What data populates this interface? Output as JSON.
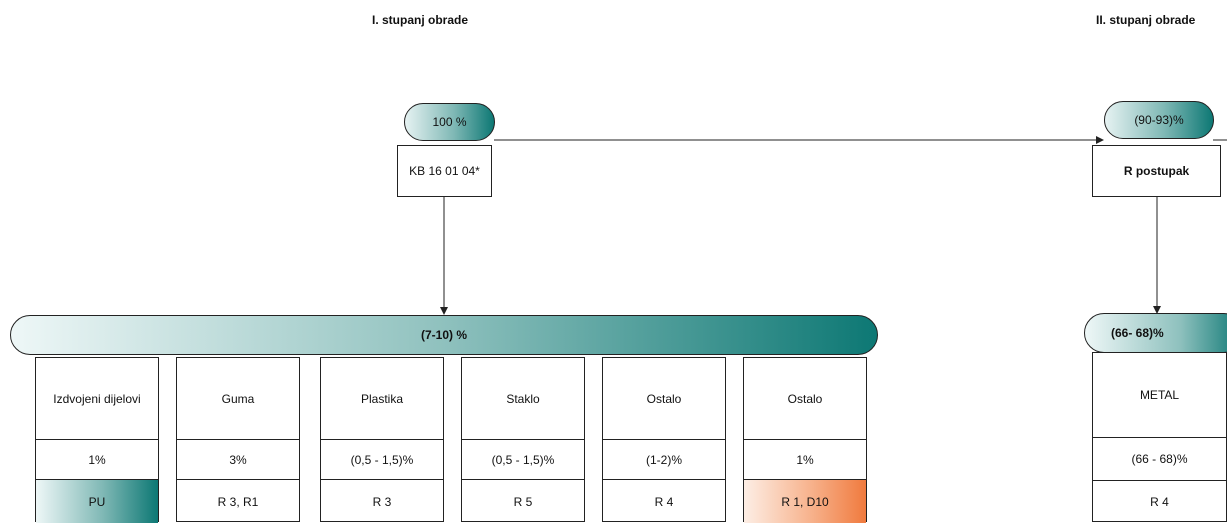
{
  "stage1": {
    "title": "I. stupanj obrade"
  },
  "stage2": {
    "title": "II. stupanj obrade"
  },
  "input": {
    "percent": "100 %",
    "code": "KB 16 01 04*"
  },
  "stage1_output": {
    "percent": "(7-10) %"
  },
  "stage2_input": {
    "percent": "(90-93)%",
    "process": "R postupak"
  },
  "stage2_output": {
    "percent": "(66- 68)%"
  },
  "fractions": [
    {
      "name": "Izdvojeni dijelovi",
      "share": "1%",
      "code": "PU"
    },
    {
      "name": "Guma",
      "share": "3%",
      "code": "R 3, R1"
    },
    {
      "name": "Plastika",
      "share": "(0,5 - 1,5)%",
      "code": "R 3"
    },
    {
      "name": "Staklo",
      "share": "(0,5 - 1,5)%",
      "code": "R 5"
    },
    {
      "name": "Ostalo",
      "share": "(1-2)%",
      "code": "R 4"
    },
    {
      "name": "Ostalo",
      "share": "1%",
      "code": "R 1, D10"
    }
  ],
  "metal": {
    "name": "METAL",
    "share": "(66 - 68)%",
    "code": "R 4"
  },
  "colors": {
    "teal": "#0d7874",
    "tealLight": "#e6f2f2",
    "orange": "#f07a3e",
    "orangeLight": "#fde8dc"
  }
}
